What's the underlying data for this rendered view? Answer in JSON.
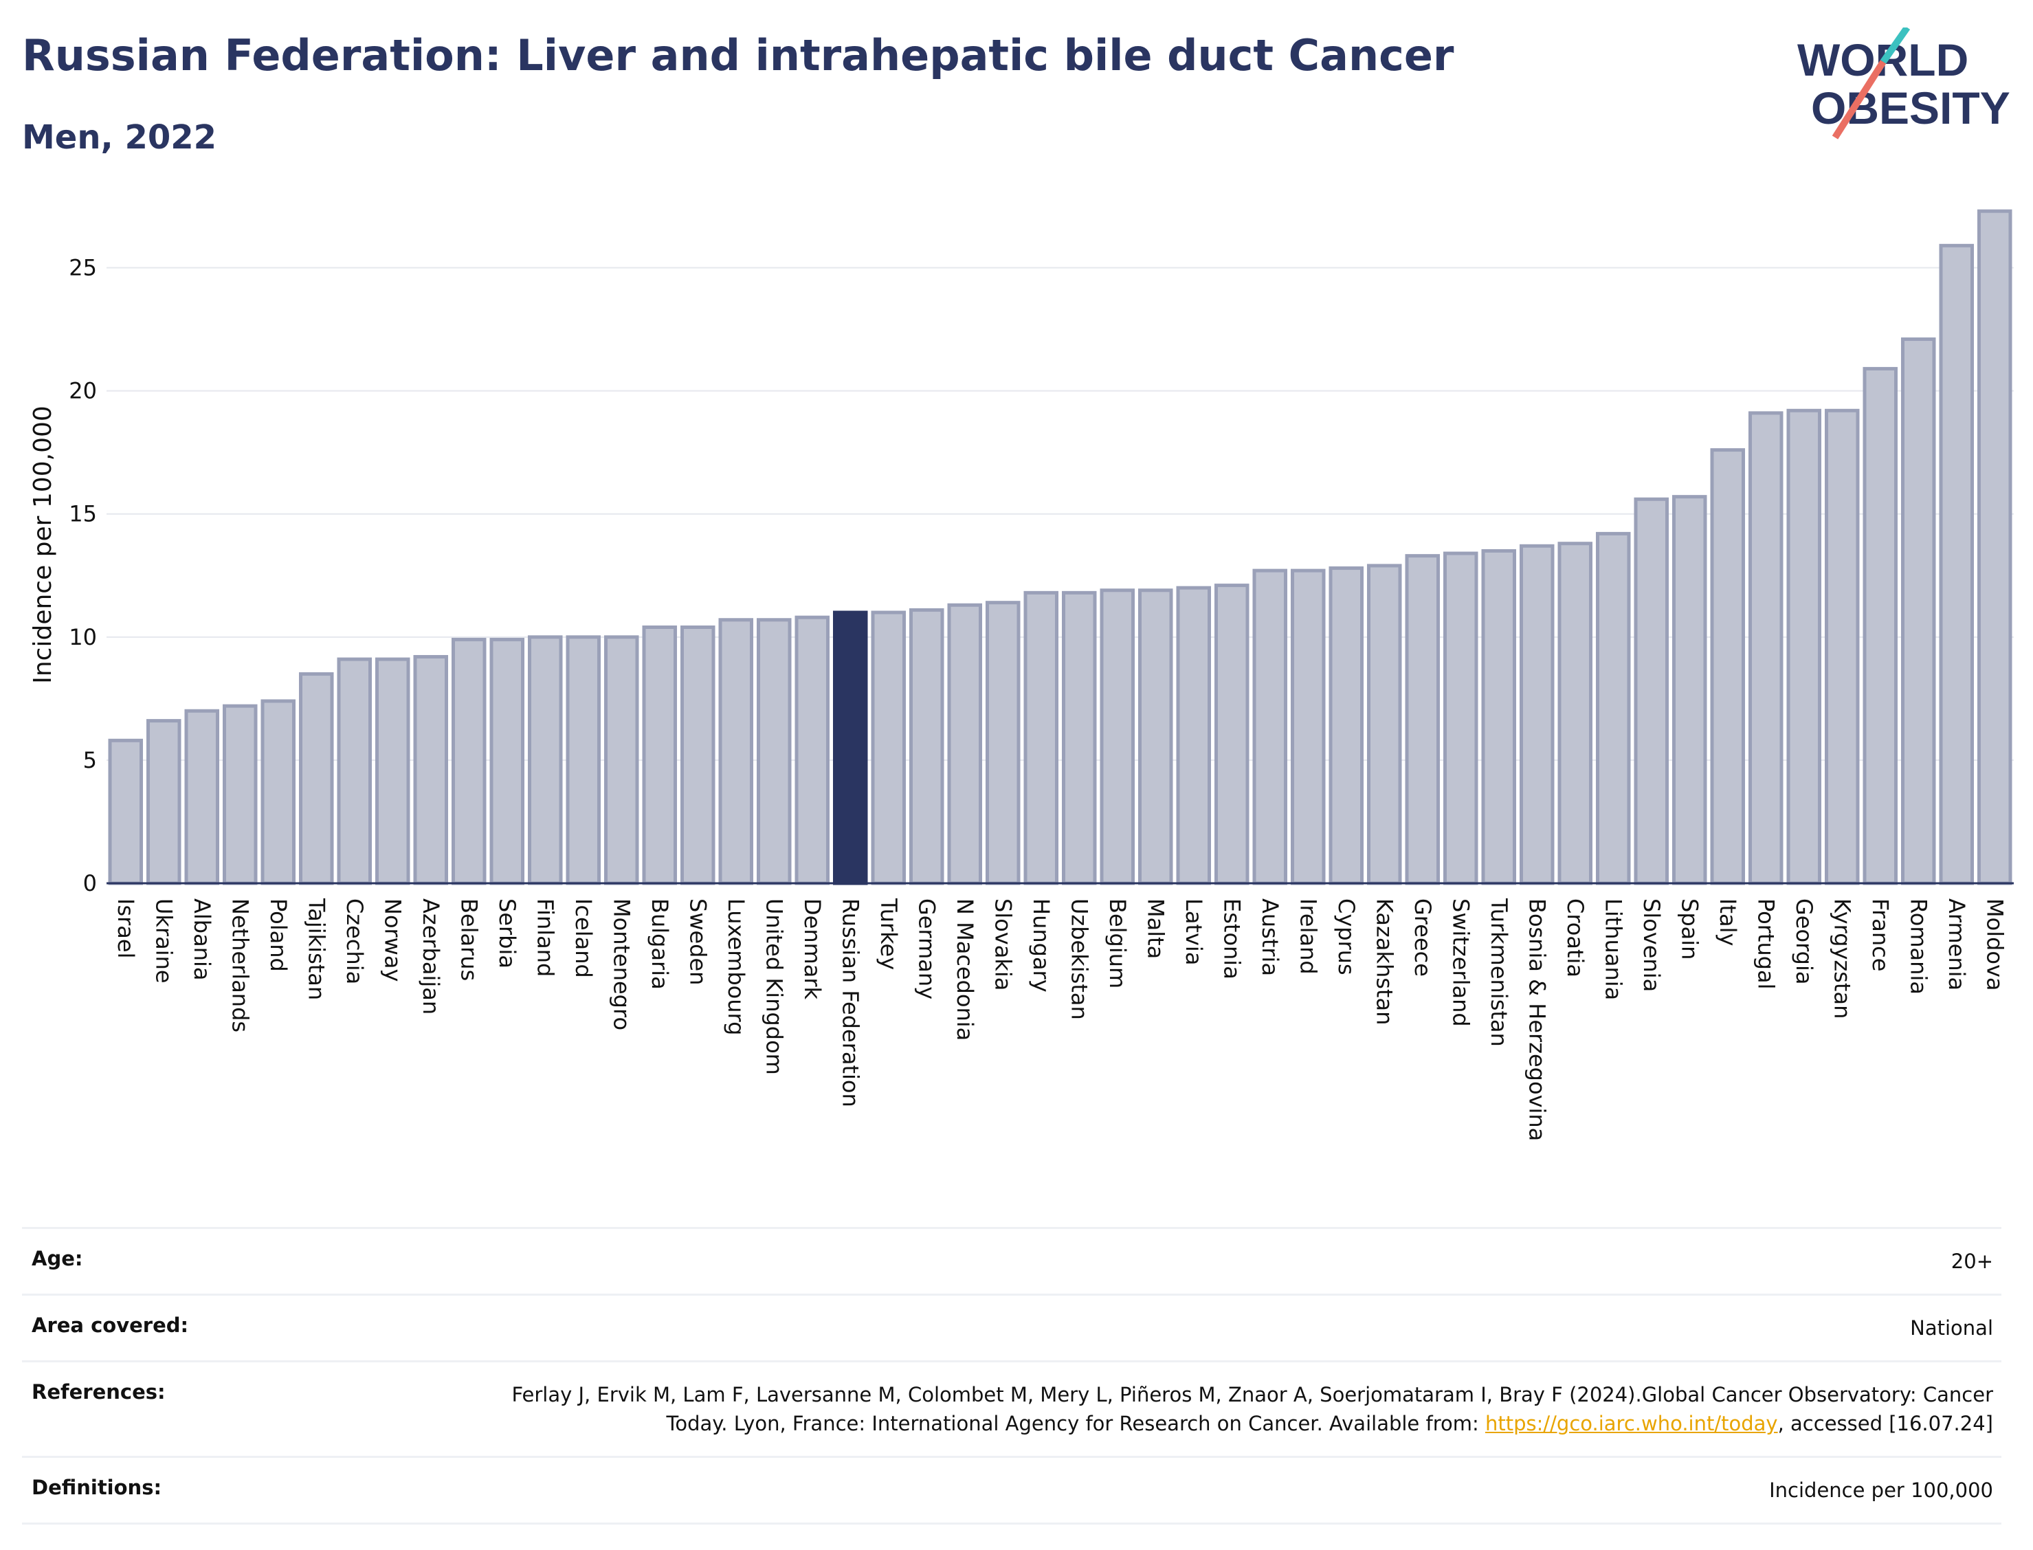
{
  "header": {
    "title": "Russian Federation: Liver and intrahepatic bile duct Cancer",
    "subtitle": "Men, 2022"
  },
  "logo": {
    "line1": "WORLD",
    "line2": "OBESITY"
  },
  "colors": {
    "bar": "#bfc3d1",
    "bar_stroke": "#9aa0b8",
    "highlight": "#2a3561",
    "title": "#2a3561",
    "logo_teal": "#3cc1c0",
    "logo_coral": "#ea6f63"
  },
  "chart_data": {
    "type": "bar",
    "ylabel": "Incidence per 100,000",
    "ylim": [
      0,
      27.5
    ],
    "yticks": [
      0,
      5,
      10,
      15,
      20,
      25
    ],
    "grid": true,
    "highlight": "Russian Federation",
    "categories": [
      "Israel",
      "Ukraine",
      "Albania",
      "Netherlands",
      "Poland",
      "Tajikistan",
      "Czechia",
      "Norway",
      "Azerbaijan",
      "Belarus",
      "Serbia",
      "Finland",
      "Iceland",
      "Montenegro",
      "Bulgaria",
      "Sweden",
      "Luxembourg",
      "United Kingdom",
      "Denmark",
      "Russian Federation",
      "Turkey",
      "Germany",
      "N Macedonia",
      "Slovakia",
      "Hungary",
      "Uzbekistan",
      "Belgium",
      "Malta",
      "Latvia",
      "Estonia",
      "Austria",
      "Ireland",
      "Cyprus",
      "Kazakhstan",
      "Greece",
      "Switzerland",
      "Turkmenistan",
      "Bosnia & Herzegovina",
      "Croatia",
      "Lithuania",
      "Slovenia",
      "Spain",
      "Italy",
      "Portugal",
      "Georgia",
      "Kyrgyzstan",
      "France",
      "Romania",
      "Armenia",
      "Moldova"
    ],
    "values": [
      5.8,
      6.6,
      7.0,
      7.2,
      7.4,
      8.5,
      9.1,
      9.1,
      9.2,
      9.9,
      9.9,
      10.0,
      10.0,
      10.0,
      10.4,
      10.4,
      10.7,
      10.7,
      10.8,
      11.0,
      11.0,
      11.1,
      11.3,
      11.4,
      11.8,
      11.8,
      11.9,
      11.9,
      12.0,
      12.1,
      12.7,
      12.7,
      12.8,
      12.9,
      13.3,
      13.4,
      13.5,
      13.7,
      13.8,
      14.2,
      15.6,
      15.7,
      17.6,
      19.1,
      19.2,
      19.2,
      20.9,
      22.1,
      25.9,
      27.3
    ]
  },
  "footer": {
    "rows": [
      {
        "label": "Age:",
        "value": "20+"
      },
      {
        "label": "Area covered:",
        "value": "National"
      },
      {
        "label": "References:",
        "value_pre": "Ferlay J, Ervik M, Lam F, Laversanne M, Colombet M, Mery L, Piñeros M, Znaor A, Soerjomataram I, Bray F (2024).Global Cancer Observatory: Cancer Today. Lyon, France: International Agency for Research on Cancer. Available from: ",
        "link": "https://gco.iarc.who.int/today",
        "value_post": ", accessed [16.07.24]"
      },
      {
        "label": "Definitions:",
        "value": "Incidence per 100,000"
      }
    ]
  }
}
